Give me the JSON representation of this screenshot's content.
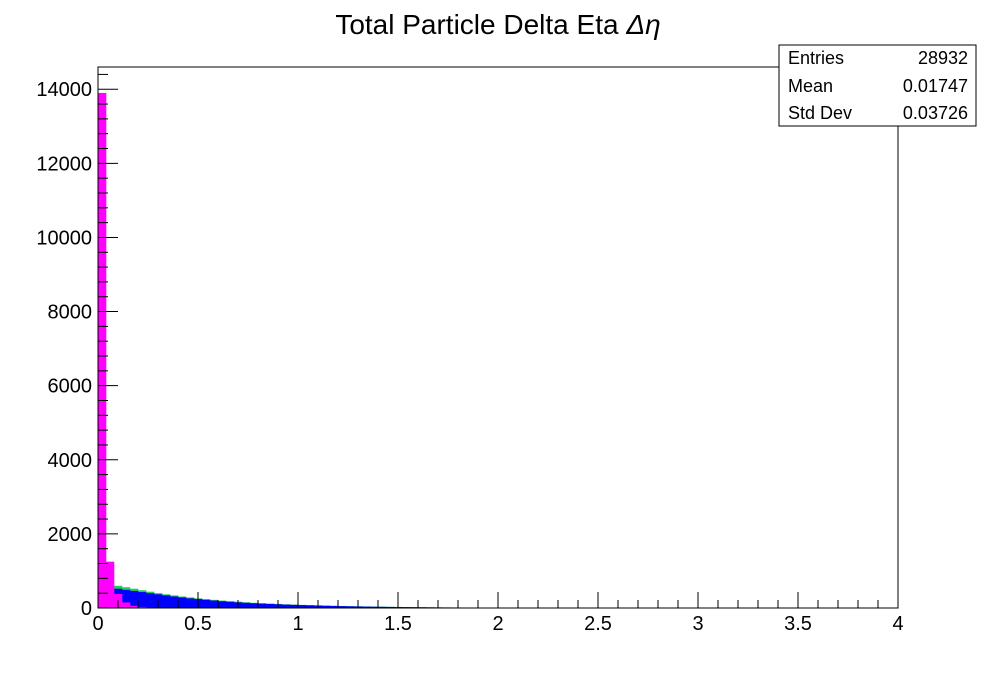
{
  "chart_data": {
    "type": "bar",
    "title": "Total Particle Delta Eta Δη",
    "title_text": "Total Particle Delta Eta ",
    "title_symbol": "Δη",
    "xlabel": "",
    "ylabel": "",
    "xlim": [
      0,
      4
    ],
    "ylim": [
      0,
      14600
    ],
    "grid": false,
    "bin_width": 0.04,
    "x_ticks": [
      "0",
      "0.5",
      "1",
      "1.5",
      "2",
      "2.5",
      "3",
      "3.5",
      "4"
    ],
    "y_ticks": [
      "0",
      "2000",
      "4000",
      "6000",
      "8000",
      "10000",
      "12000",
      "14000"
    ],
    "series": [
      {
        "color": "#22cc55",
        "values": [
          0,
          0,
          600,
          560,
          520,
          480,
          440,
          400,
          370,
          340,
          310,
          285,
          260,
          240,
          220,
          200,
          185,
          170,
          155,
          140,
          130,
          120,
          110,
          100,
          92,
          85,
          78,
          72,
          66,
          60,
          55,
          50,
          46,
          42,
          38,
          35,
          32,
          29,
          26,
          24,
          22,
          20,
          18,
          16,
          15,
          14,
          13,
          12,
          11,
          10,
          9,
          8,
          8,
          7,
          7,
          6,
          6,
          5,
          5,
          5,
          4,
          4,
          4,
          3,
          3,
          3,
          3,
          2,
          2,
          2,
          2,
          2,
          2,
          1,
          1,
          1,
          1,
          1,
          1,
          1,
          1,
          1,
          1,
          1,
          1,
          1,
          1,
          1,
          1,
          1,
          1,
          1,
          1,
          1,
          1,
          1,
          1,
          1,
          1,
          1
        ]
      },
      {
        "color": "#0000ff",
        "values": [
          0,
          0,
          520,
          490,
          460,
          430,
          400,
          370,
          340,
          310,
          285,
          260,
          240,
          220,
          200,
          182,
          166,
          152,
          140,
          128,
          118,
          108,
          100,
          92,
          85,
          78,
          72,
          66,
          60,
          55,
          50,
          46,
          42,
          38,
          35,
          32,
          29,
          26,
          24,
          22,
          20,
          18,
          16,
          15,
          14,
          13,
          12,
          11,
          10,
          9,
          8,
          8,
          7,
          7,
          6,
          6,
          5,
          5,
          5,
          4,
          4,
          4,
          3,
          3,
          3,
          3,
          2,
          2,
          2,
          2,
          2,
          2,
          1,
          1,
          1,
          1,
          1,
          1,
          1,
          1,
          1,
          1,
          1,
          1,
          1,
          1,
          1,
          1,
          1,
          1,
          1,
          1,
          1,
          1,
          1,
          1,
          1,
          1,
          1,
          1
        ]
      },
      {
        "color": "#ff00ff",
        "values": [
          13900,
          1250,
          380,
          150,
          60,
          30,
          18,
          12,
          9,
          7,
          6,
          5,
          5,
          4,
          4,
          3,
          3,
          3,
          3,
          2,
          2,
          2,
          2,
          2,
          2,
          2,
          2,
          2,
          2,
          2,
          2,
          2,
          2,
          2,
          2,
          2,
          2,
          2,
          2,
          2,
          2,
          2,
          2,
          2,
          2,
          2,
          2,
          2,
          2,
          2,
          2,
          2,
          2,
          2,
          2,
          2,
          2,
          2,
          2,
          2,
          2,
          2,
          2,
          2,
          2,
          2,
          2,
          2,
          2,
          2,
          2,
          2,
          2,
          2,
          2,
          2,
          2,
          2,
          2,
          2,
          2,
          2,
          2,
          2,
          2,
          2,
          2,
          2,
          2,
          2,
          2,
          2,
          2,
          2,
          2,
          2,
          2,
          2,
          2,
          2
        ]
      }
    ],
    "stats_box": {
      "placement": "top-right",
      "rows": [
        {
          "label": "Entries",
          "value": "28932"
        },
        {
          "label": "Mean",
          "value": "0.01747"
        },
        {
          "label": "Std Dev",
          "value": "0.03726"
        }
      ]
    }
  }
}
